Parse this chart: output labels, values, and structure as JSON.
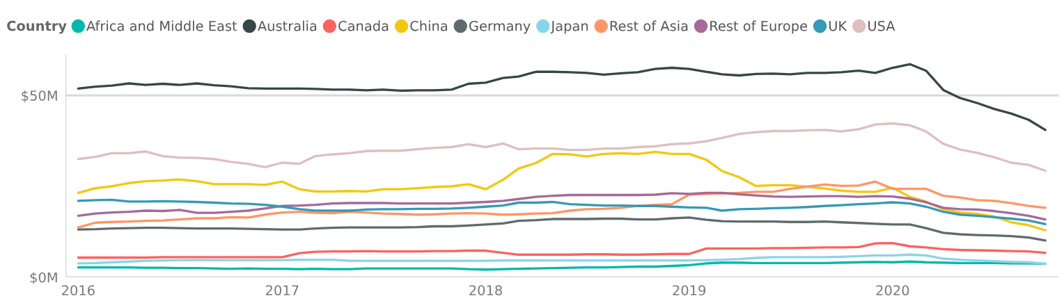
{
  "chart_data": {
    "type": "line",
    "legend_title": "Country",
    "legend": "top left",
    "grid": "y",
    "marker": "none",
    "line_style": "solid",
    "x": [
      "2016-01",
      "2016-02",
      "2016-03",
      "2016-04",
      "2016-05",
      "2016-06",
      "2016-07",
      "2016-08",
      "2016-09",
      "2016-10",
      "2016-11",
      "2016-12",
      "2017-01",
      "2017-02",
      "2017-03",
      "2017-04",
      "2017-05",
      "2017-06",
      "2017-07",
      "2017-08",
      "2017-09",
      "2017-10",
      "2017-11",
      "2017-12",
      "2018-01",
      "2018-02",
      "2018-03",
      "2018-04",
      "2018-05",
      "2018-06",
      "2018-07",
      "2018-08",
      "2018-09",
      "2018-10",
      "2018-11",
      "2018-12",
      "2019-01",
      "2019-02",
      "2019-03",
      "2019-04",
      "2019-05",
      "2019-06",
      "2019-07",
      "2019-08",
      "2019-09",
      "2019-10",
      "2019-11",
      "2019-12",
      "2020-01",
      "2020-02",
      "2020-03",
      "2020-04",
      "2020-05",
      "2020-06",
      "2020-07",
      "2020-08",
      "2020-09",
      "2020-10"
    ],
    "xlim": [
      "2015-12-10",
      "2020-10-25"
    ],
    "ylim": [
      0,
      61
    ],
    "xticks": [
      {
        "value": "2016",
        "label": "2016"
      },
      {
        "value": "2017",
        "label": "2017"
      },
      {
        "value": "2018",
        "label": "2018"
      },
      {
        "value": "2019",
        "label": "2019"
      },
      {
        "value": "2020",
        "label": "2020"
      }
    ],
    "yticks": [
      {
        "value": 0,
        "label": "$0M"
      },
      {
        "value": 50,
        "label": "$50M"
      }
    ],
    "series": [
      {
        "name": "Africa and Middle East",
        "color": "#01b8aa",
        "values": [
          2.7,
          2.7,
          2.7,
          2.7,
          2.6,
          2.6,
          2.5,
          2.5,
          2.4,
          2.3,
          2.4,
          2.3,
          2.3,
          2.2,
          2.3,
          2.2,
          2.2,
          2.4,
          2.4,
          2.4,
          2.4,
          2.4,
          2.4,
          2.2,
          2.1,
          2.2,
          2.3,
          2.4,
          2.5,
          2.6,
          2.7,
          2.7,
          2.8,
          2.9,
          2.9,
          3.1,
          3.3,
          3.8,
          4.0,
          4.0,
          3.9,
          3.9,
          3.9,
          3.9,
          3.9,
          4.0,
          4.1,
          4.2,
          4.1,
          4.3,
          4.1,
          4.0,
          3.9,
          3.9,
          3.9,
          3.8,
          3.8,
          3.7
        ]
      },
      {
        "name": "Australia",
        "color": "#374649",
        "values": [
          51.9,
          52.4,
          52.7,
          53.3,
          52.9,
          53.2,
          52.9,
          53.3,
          52.8,
          52.5,
          52.0,
          51.9,
          51.9,
          51.9,
          51.8,
          51.6,
          51.6,
          51.4,
          51.6,
          51.3,
          51.4,
          51.4,
          51.6,
          53.2,
          53.5,
          54.8,
          55.2,
          56.5,
          56.5,
          56.4,
          56.2,
          55.7,
          56.1,
          56.4,
          57.3,
          57.6,
          57.3,
          56.5,
          55.8,
          55.5,
          55.9,
          56.0,
          55.8,
          56.2,
          56.2,
          56.4,
          56.8,
          56.2,
          57.6,
          58.6,
          56.8,
          51.5,
          49.3,
          47.9,
          46.3,
          45.0,
          43.3,
          40.5
        ]
      },
      {
        "name": "Canada",
        "color": "#fd625e",
        "values": [
          5.4,
          5.4,
          5.4,
          5.4,
          5.4,
          5.5,
          5.5,
          5.5,
          5.5,
          5.5,
          5.5,
          5.5,
          5.5,
          6.6,
          7.0,
          7.1,
          7.1,
          7.2,
          7.1,
          7.1,
          7.1,
          7.2,
          7.2,
          7.3,
          7.3,
          6.7,
          6.2,
          6.2,
          6.2,
          6.2,
          6.3,
          6.3,
          6.2,
          6.2,
          6.3,
          6.4,
          6.4,
          7.9,
          7.9,
          7.9,
          7.9,
          8.0,
          8.0,
          8.1,
          8.2,
          8.2,
          8.3,
          9.3,
          9.4,
          8.5,
          8.2,
          7.7,
          7.5,
          7.4,
          7.3,
          7.2,
          7.1,
          6.7
        ]
      },
      {
        "name": "China",
        "color": "#f2c80f",
        "values": [
          23.2,
          24.5,
          25.0,
          25.9,
          26.4,
          26.6,
          26.9,
          26.4,
          25.6,
          25.6,
          25.6,
          25.4,
          26.3,
          24.2,
          23.6,
          23.6,
          23.7,
          23.6,
          24.2,
          24.2,
          24.5,
          24.8,
          25.0,
          25.6,
          24.2,
          26.8,
          29.9,
          31.4,
          33.9,
          33.8,
          33.2,
          33.9,
          34.1,
          33.9,
          34.5,
          33.9,
          33.9,
          32.3,
          29.2,
          27.5,
          25.1,
          25.3,
          25.3,
          24.9,
          24.4,
          23.8,
          23.5,
          23.5,
          24.6,
          22.1,
          20.8,
          18.7,
          17.8,
          17.4,
          16.7,
          15.1,
          14.3,
          12.9
        ]
      },
      {
        "name": "Germany",
        "color": "#5f6b6d",
        "values": [
          13.1,
          13.2,
          13.4,
          13.5,
          13.6,
          13.6,
          13.5,
          13.4,
          13.4,
          13.4,
          13.3,
          13.2,
          13.1,
          13.1,
          13.4,
          13.6,
          13.7,
          13.7,
          13.7,
          13.7,
          13.8,
          14.0,
          14.0,
          14.2,
          14.5,
          14.8,
          15.5,
          15.7,
          16.0,
          16.0,
          16.0,
          16.1,
          16.1,
          15.9,
          15.9,
          16.2,
          16.4,
          15.8,
          15.4,
          15.3,
          15.3,
          15.3,
          15.2,
          15.2,
          15.3,
          15.1,
          14.9,
          14.7,
          14.5,
          14.5,
          13.5,
          12.2,
          11.8,
          11.6,
          11.5,
          11.3,
          10.9,
          10.1
        ]
      },
      {
        "name": "Japan",
        "color": "#8ad4eb",
        "values": [
          3.8,
          3.9,
          4.1,
          4.3,
          4.5,
          4.6,
          4.7,
          4.7,
          4.7,
          4.7,
          4.7,
          4.7,
          4.7,
          4.8,
          4.8,
          4.8,
          4.5,
          4.5,
          4.5,
          4.5,
          4.5,
          4.5,
          4.5,
          4.5,
          4.5,
          4.6,
          4.6,
          4.6,
          4.6,
          4.6,
          4.6,
          4.6,
          4.6,
          4.6,
          4.6,
          4.6,
          4.6,
          4.7,
          4.8,
          5.0,
          5.3,
          5.5,
          5.5,
          5.5,
          5.5,
          5.6,
          5.8,
          6.0,
          6.0,
          6.2,
          6.0,
          5.1,
          4.8,
          4.6,
          4.4,
          4.2,
          4.1,
          3.7
        ]
      },
      {
        "name": "Rest of Asia",
        "color": "#fe9666",
        "values": [
          13.7,
          15.0,
          15.2,
          15.3,
          15.5,
          15.6,
          15.9,
          16.2,
          16.2,
          16.5,
          16.4,
          17.2,
          17.8,
          18.0,
          17.7,
          17.6,
          18.0,
          17.8,
          17.5,
          17.4,
          17.2,
          17.3,
          17.5,
          17.6,
          17.5,
          17.2,
          17.3,
          17.5,
          17.6,
          18.3,
          18.7,
          18.8,
          19.1,
          19.6,
          19.9,
          20.1,
          22.7,
          22.9,
          23.0,
          23.2,
          23.5,
          23.5,
          24.3,
          24.9,
          25.5,
          25.1,
          25.2,
          26.3,
          24.3,
          24.3,
          24.3,
          22.4,
          21.9,
          21.2,
          21.0,
          20.4,
          19.6,
          19.1
        ]
      },
      {
        "name": "Rest of Europe",
        "color": "#a66999",
        "values": [
          16.9,
          17.5,
          17.8,
          18.0,
          18.3,
          18.2,
          18.5,
          17.7,
          17.7,
          18.0,
          18.3,
          18.9,
          19.6,
          19.7,
          19.9,
          20.3,
          20.4,
          20.4,
          20.4,
          20.3,
          20.3,
          20.3,
          20.3,
          20.5,
          20.7,
          21.0,
          21.5,
          22.1,
          22.4,
          22.6,
          22.6,
          22.6,
          22.6,
          22.6,
          22.7,
          23.1,
          22.9,
          23.2,
          23.2,
          22.8,
          22.5,
          22.2,
          22.1,
          22.2,
          22.3,
          22.3,
          22.1,
          22.3,
          22.2,
          21.6,
          20.6,
          19.1,
          18.7,
          18.6,
          18.2,
          17.6,
          16.9,
          15.9
        ]
      },
      {
        "name": "UK",
        "color": "#3599b8",
        "values": [
          21.0,
          21.2,
          21.3,
          20.8,
          20.8,
          20.9,
          20.8,
          20.7,
          20.5,
          20.3,
          20.2,
          19.9,
          19.4,
          18.7,
          18.3,
          18.3,
          18.3,
          18.6,
          18.7,
          18.7,
          18.8,
          18.8,
          18.9,
          19.1,
          19.4,
          19.7,
          20.5,
          20.5,
          20.7,
          20.1,
          19.9,
          19.7,
          19.7,
          19.6,
          19.6,
          19.4,
          19.2,
          19.1,
          18.3,
          18.7,
          18.8,
          19.0,
          19.1,
          19.3,
          19.6,
          19.8,
          20.1,
          20.3,
          20.6,
          20.3,
          19.4,
          18.0,
          17.2,
          16.9,
          16.5,
          16.1,
          15.6,
          14.6
        ]
      },
      {
        "name": "USA",
        "color": "#dfbfbf",
        "values": [
          32.5,
          33.1,
          34.1,
          34.1,
          34.6,
          33.3,
          32.9,
          32.8,
          32.5,
          31.7,
          31.2,
          30.3,
          31.5,
          31.2,
          33.3,
          33.8,
          34.1,
          34.7,
          34.8,
          34.8,
          35.2,
          35.6,
          35.8,
          36.6,
          35.8,
          36.8,
          35.2,
          35.4,
          35.4,
          35.0,
          35.0,
          35.4,
          35.4,
          35.8,
          36.0,
          36.6,
          36.8,
          37.4,
          38.3,
          39.4,
          39.9,
          40.2,
          40.2,
          40.4,
          40.5,
          40.1,
          40.7,
          42.0,
          42.3,
          41.8,
          40.1,
          36.7,
          35.1,
          34.2,
          33.0,
          31.5,
          30.9,
          29.3
        ]
      }
    ]
  }
}
